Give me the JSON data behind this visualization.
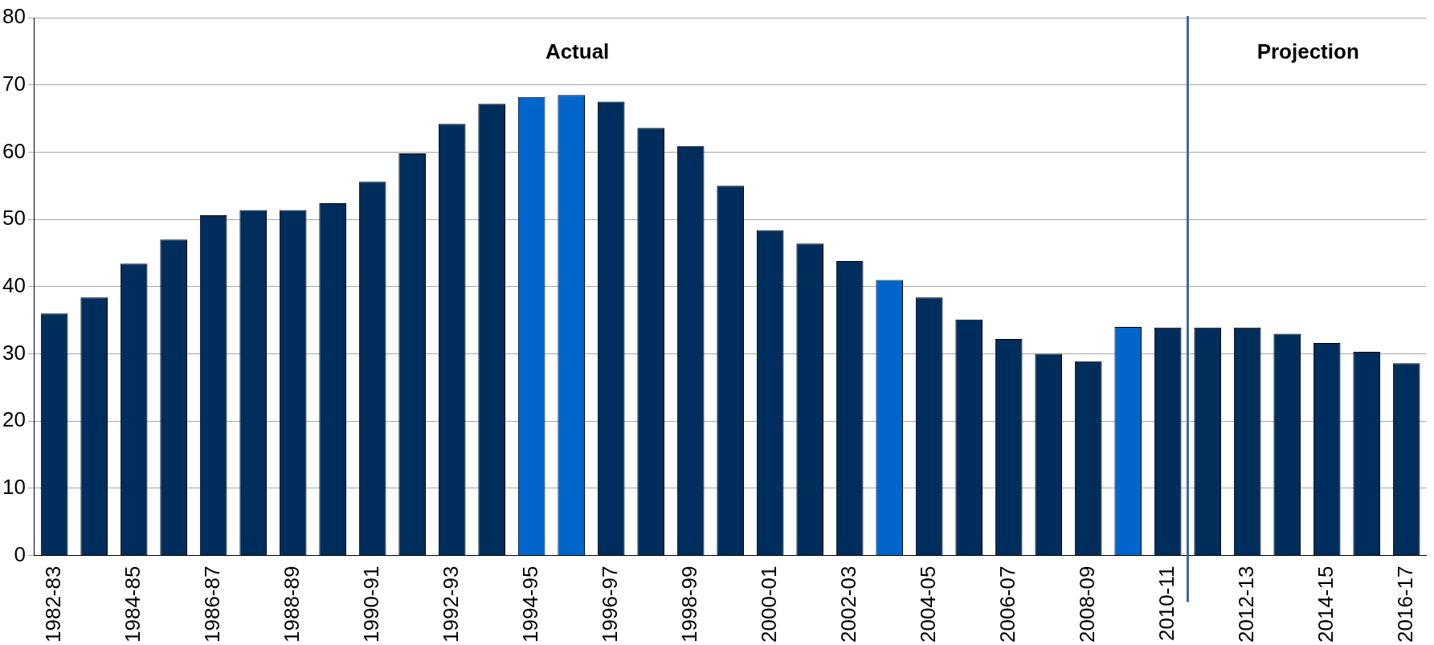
{
  "chart_data": {
    "type": "bar",
    "categories": [
      "1982-83",
      null,
      "1984-85",
      null,
      "1986-87",
      null,
      "1988-89",
      null,
      "1990-91",
      null,
      "1992-93",
      null,
      "1994-95",
      null,
      "1996-97",
      null,
      "1998-99",
      null,
      "2000-01",
      null,
      "2002-03",
      null,
      "2004-05",
      null,
      "2006-07",
      null,
      "2008-09",
      null,
      "2010-11",
      null,
      "2012-13",
      null,
      "2014-15",
      null,
      "2016-17"
    ],
    "values": [
      36.0,
      38.4,
      43.4,
      47.0,
      50.6,
      51.4,
      51.4,
      52.4,
      55.6,
      59.8,
      64.2,
      67.2,
      68.2,
      68.5,
      67.5,
      63.6,
      60.9,
      55.0,
      48.4,
      46.4,
      43.8,
      41.0,
      38.4,
      35.1,
      32.2,
      30.0,
      28.9,
      34.0,
      33.9,
      33.9,
      33.9,
      33.0,
      31.6,
      30.3,
      28.6
    ],
    "colors": [
      "#002e5c",
      "#002e5c",
      "#002e5c",
      "#002e5c",
      "#002e5c",
      "#002e5c",
      "#002e5c",
      "#002e5c",
      "#002e5c",
      "#002e5c",
      "#002e5c",
      "#002e5c",
      "#0066cc",
      "#0066cc",
      "#002e5c",
      "#002e5c",
      "#002e5c",
      "#002e5c",
      "#002e5c",
      "#002e5c",
      "#002e5c",
      "#0066cc",
      "#002e5c",
      "#002e5c",
      "#002e5c",
      "#002e5c",
      "#002e5c",
      "#0066cc",
      "#002e5c",
      "#002e5c",
      "#002e5c",
      "#002e5c",
      "#002e5c",
      "#002e5c",
      "#002e5c"
    ],
    "ylim": [
      0,
      80
    ],
    "yticks": [
      0,
      10,
      20,
      30,
      40,
      50,
      60,
      70,
      80
    ],
    "grid": "y",
    "legend": false,
    "ref_lines": [
      {
        "axis": "x",
        "value": "2010-11",
        "color": "#3a6a9a"
      }
    ],
    "annotations": [
      "Actual",
      "Projection"
    ]
  }
}
